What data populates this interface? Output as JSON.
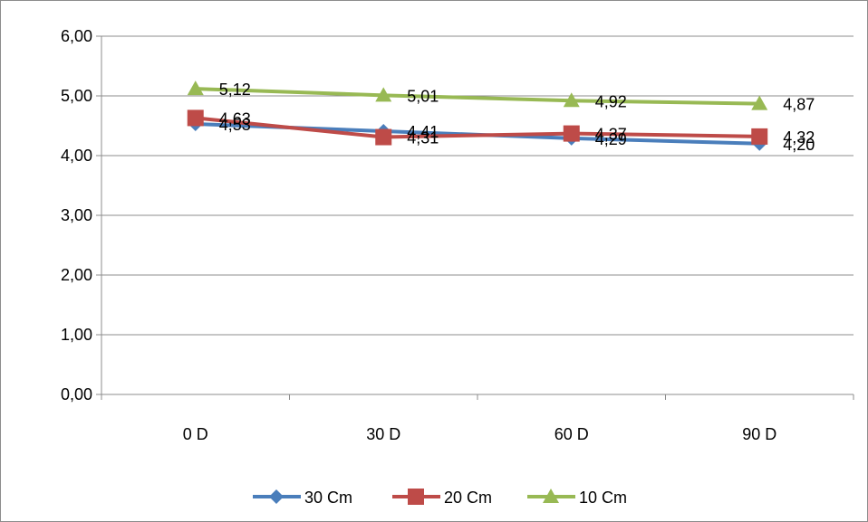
{
  "chart_data": {
    "type": "line",
    "categories": [
      "0 D",
      "30 D",
      "60 D",
      "90 D"
    ],
    "ylim": [
      0,
      6
    ],
    "y_ticks": [
      "0,00",
      "1,00",
      "2,00",
      "3,00",
      "4,00",
      "5,00",
      "6,00"
    ],
    "grid": "horizontal major gridlines",
    "legend_position": "bottom",
    "series": [
      {
        "name": "30 Cm",
        "values": [
          4.53,
          4.41,
          4.29,
          4.2
        ],
        "labels": [
          "4,53",
          "4,41",
          "4,29",
          "4,20"
        ],
        "color": "#4a7ebb",
        "marker": "diamond"
      },
      {
        "name": "20 Cm",
        "values": [
          4.63,
          4.31,
          4.37,
          4.32
        ],
        "labels": [
          "4,63",
          "4,31",
          "4,37",
          "4,32"
        ],
        "color": "#be4b48",
        "marker": "square"
      },
      {
        "name": "10 Cm",
        "values": [
          5.12,
          5.01,
          4.92,
          4.87
        ],
        "labels": [
          "5,12",
          "5,01",
          "4,92",
          "4,87"
        ],
        "color": "#98b954",
        "marker": "triangle"
      }
    ]
  }
}
